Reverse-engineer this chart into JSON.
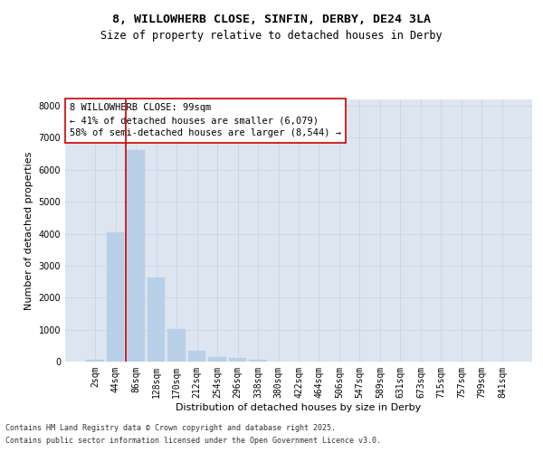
{
  "title_line1": "8, WILLOWHERB CLOSE, SINFIN, DERBY, DE24 3LA",
  "title_line2": "Size of property relative to detached houses in Derby",
  "xlabel": "Distribution of detached houses by size in Derby",
  "ylabel": "Number of detached properties",
  "categories": [
    "2sqm",
    "44sqm",
    "86sqm",
    "128sqm",
    "170sqm",
    "212sqm",
    "254sqm",
    "296sqm",
    "338sqm",
    "380sqm",
    "422sqm",
    "464sqm",
    "506sqm",
    "547sqm",
    "589sqm",
    "631sqm",
    "673sqm",
    "715sqm",
    "757sqm",
    "799sqm",
    "841sqm"
  ],
  "bar_heights": [
    50,
    4050,
    6620,
    2640,
    1010,
    350,
    140,
    110,
    70,
    0,
    0,
    0,
    0,
    0,
    0,
    0,
    0,
    0,
    0,
    0,
    0
  ],
  "bar_color": "#b8cfe8",
  "bar_edgecolor": "#b8cfe8",
  "vline_x": 1.5,
  "vline_color": "#cc0000",
  "annotation_title": "8 WILLOWHERB CLOSE: 99sqm",
  "annotation_line2": "← 41% of detached houses are smaller (6,079)",
  "annotation_line3": "58% of semi-detached houses are larger (8,544) →",
  "annotation_box_facecolor": "#ffffff",
  "annotation_box_edgecolor": "#cc0000",
  "ylim": [
    0,
    8200
  ],
  "yticks": [
    0,
    1000,
    2000,
    3000,
    4000,
    5000,
    6000,
    7000,
    8000
  ],
  "grid_color": "#c8d4e8",
  "background_color": "#dde6f0",
  "footnote_line1": "Contains HM Land Registry data © Crown copyright and database right 2025.",
  "footnote_line2": "Contains public sector information licensed under the Open Government Licence v3.0.",
  "title_fontsize": 9.5,
  "subtitle_fontsize": 8.5,
  "axis_label_fontsize": 8,
  "tick_fontsize": 7,
  "annotation_fontsize": 7.5,
  "footnote_fontsize": 6
}
